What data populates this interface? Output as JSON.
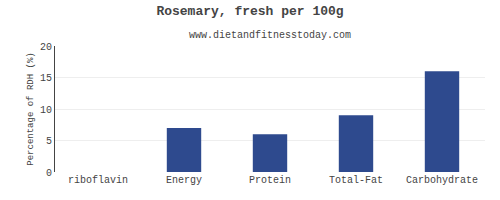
{
  "chart_data": {
    "type": "bar",
    "title": "Rosemary, fresh per 100g",
    "subtitle": "www.dietandfitnesstoday.com",
    "categories": [
      "riboflavin",
      "Energy",
      "Protein",
      "Total-Fat",
      "Carbohydrate"
    ],
    "values": [
      0,
      7,
      6,
      9,
      16
    ],
    "color": "#2e4a8e",
    "ylabel": "Percentage of RDH (%)",
    "ylim": [
      0,
      20
    ],
    "yticks": [
      0,
      5,
      10,
      15,
      20
    ],
    "grid": true
  }
}
